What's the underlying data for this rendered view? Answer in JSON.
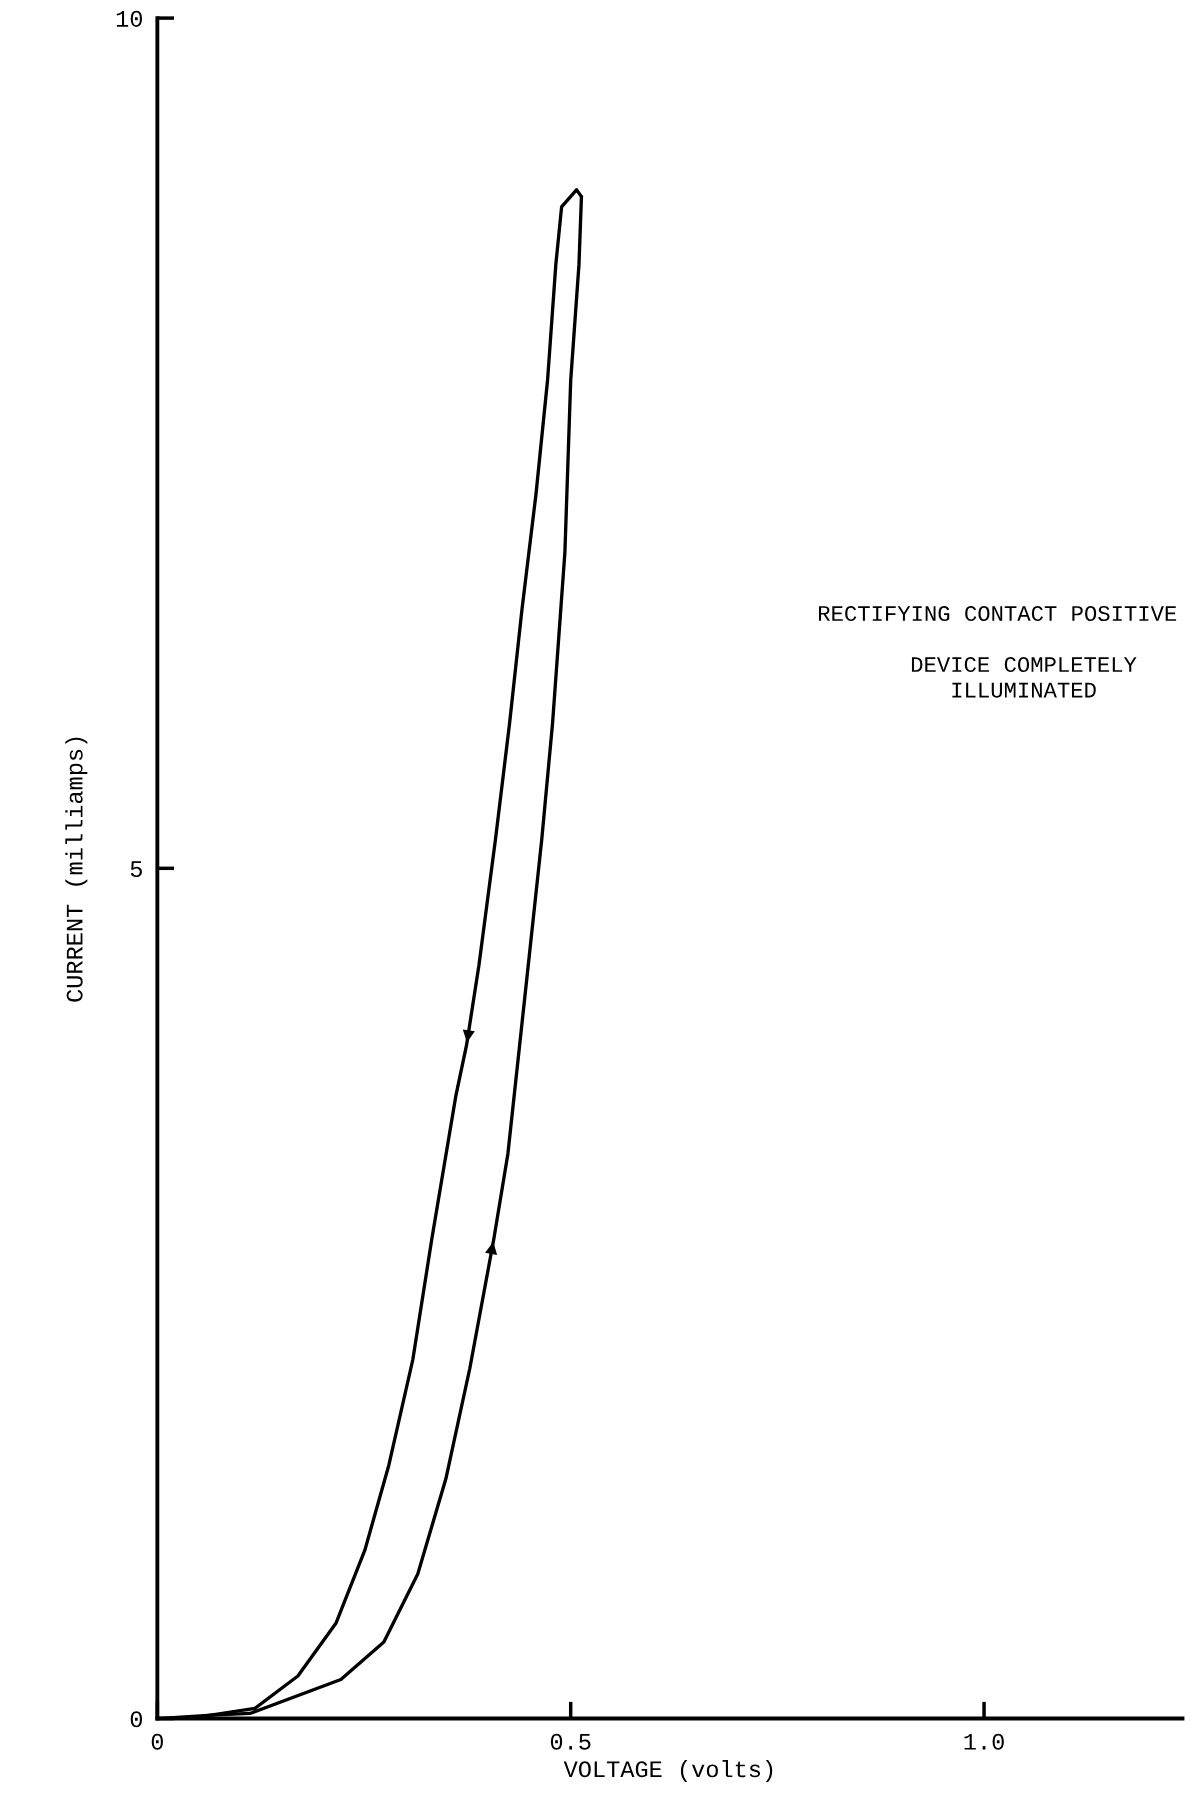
{
  "chart_data": {
    "type": "line",
    "xlabel": "VOLTAGE (volts)",
    "ylabel": "CURRENT (milliamps)",
    "annotations": [
      "RECTIFYING CONTACT POSITIVE",
      "DEVICE COMPLETELY\nILLUMINATED"
    ],
    "xlim": [
      0,
      1.24
    ],
    "ylim": [
      0,
      10
    ],
    "xticks": [
      0,
      0.5,
      {
        "value": 1.0,
        "label": "1.0"
      }
    ],
    "yticks": [
      0,
      5,
      10
    ],
    "grid": false,
    "marker": "none",
    "line_style": "solid",
    "series": [
      {
        "color": "#000000",
        "x": [
          0,
          0.066,
          0.112,
          0.222,
          0.274,
          0.315,
          0.349,
          0.378,
          0.407,
          0.424,
          0.444,
          0.465,
          0.478,
          0.493,
          0.5,
          0.51,
          0.513
        ],
        "values": [
          0,
          0.02,
          0.03,
          0.23,
          0.45,
          0.85,
          1.41,
          2.06,
          2.82,
          3.32,
          4.22,
          5.17,
          5.85,
          6.86,
          7.87,
          8.55,
          8.95
        ]
      },
      {
        "color": "#000000",
        "x": [
          0.513,
          0.507,
          0.489,
          0.482,
          0.472,
          0.458,
          0.441,
          0.426,
          0.409,
          0.389,
          0.374,
          0.361,
          0.332,
          0.309,
          0.28,
          0.251,
          0.216,
          0.17,
          0.118,
          0.037,
          0
        ],
        "values": [
          8.95,
          8.99,
          8.89,
          8.55,
          7.87,
          7.2,
          6.52,
          5.85,
          5.17,
          4.43,
          3.96,
          3.66,
          2.82,
          2.11,
          1.49,
          0.99,
          0.56,
          0.25,
          0.06,
          0.0,
          0
        ]
      }
    ]
  }
}
